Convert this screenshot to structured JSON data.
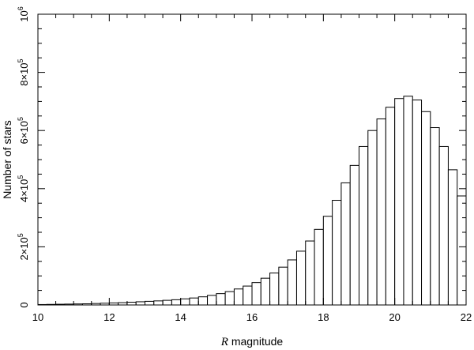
{
  "chart_data": {
    "type": "bar",
    "histogram": true,
    "xlabel_var": "R",
    "xlabel_rest": " magnitude",
    "ylabel": "Number of stars",
    "xlim": [
      10,
      22
    ],
    "ylim": [
      0,
      1000000
    ],
    "bin_width": 0.25,
    "x_ticks": [
      10,
      12,
      14,
      16,
      18,
      20,
      22
    ],
    "y_ticks": [
      {
        "value": 0,
        "base": "0",
        "exp": ""
      },
      {
        "value": 200000,
        "base": "2×10",
        "exp": "5"
      },
      {
        "value": 400000,
        "base": "4×10",
        "exp": "5"
      },
      {
        "value": 600000,
        "base": "6×10",
        "exp": "5"
      },
      {
        "value": 800000,
        "base": "8×10",
        "exp": "5"
      },
      {
        "value": 1000000,
        "base": "10",
        "exp": "6"
      }
    ],
    "grid": false,
    "bin_starts": [
      10.0,
      10.25,
      10.5,
      10.75,
      11.0,
      11.25,
      11.5,
      11.75,
      12.0,
      12.25,
      12.5,
      12.75,
      13.0,
      13.25,
      13.5,
      13.75,
      14.0,
      14.25,
      14.5,
      14.75,
      15.0,
      15.25,
      15.5,
      15.75,
      16.0,
      16.25,
      16.5,
      16.75,
      17.0,
      17.25,
      17.5,
      17.75,
      18.0,
      18.25,
      18.5,
      18.75,
      19.0,
      19.25,
      19.5,
      19.75,
      20.0,
      20.25,
      20.5,
      20.75,
      21.0,
      21.25,
      21.5,
      21.75
    ],
    "values": [
      1500,
      2000,
      2500,
      3000,
      3500,
      4000,
      5000,
      6000,
      7000,
      8000,
      9500,
      11000,
      12500,
      14000,
      16000,
      18000,
      21000,
      24000,
      28000,
      33000,
      39000,
      46000,
      55000,
      65000,
      77000,
      92000,
      110000,
      130000,
      155000,
      185000,
      220000,
      260000,
      305000,
      360000,
      420000,
      480000,
      545000,
      600000,
      640000,
      680000,
      710000,
      718000,
      705000,
      665000,
      610000,
      545000,
      465000,
      375000
    ]
  }
}
